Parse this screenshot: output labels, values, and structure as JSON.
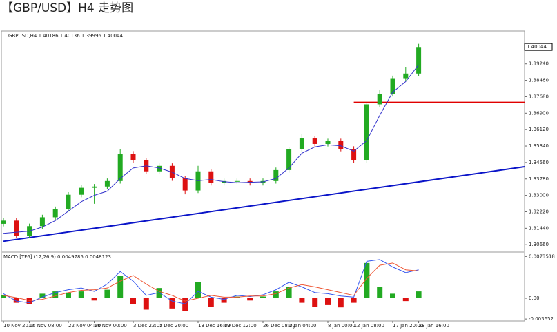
{
  "title": "【GBP/USD】H4 走势图",
  "chart_data": {
    "type": "candlestick",
    "header": "GBPUSD,H4  1.40186 1.40136 1.39996 1.40044",
    "categories": [
      "10 Nov 2017",
      null,
      "16 Nov 08:00",
      null,
      null,
      "22 Nov 04:00",
      null,
      "28 Nov 00:00",
      null,
      null,
      "3 Dec 22:05",
      null,
      "7 Dec 20:00",
      null,
      null,
      "13 Dec 16:00",
      null,
      "19 Dec 12:00",
      null,
      null,
      "26 Dec 08:00",
      null,
      "2 Jan 04:00",
      null,
      null,
      "8 Jan 00:00",
      null,
      "12 Jan 08:00",
      null,
      null,
      "17 Jan 20:00",
      null,
      "23 Jan 16:00"
    ],
    "open": [
      1.3165,
      1.318,
      1.3108,
      1.3154,
      1.3196,
      1.3235,
      1.3303,
      1.3336,
      1.3342,
      1.3368,
      1.3498,
      1.3466,
      1.3414,
      1.344,
      1.3381,
      1.3323,
      1.3414,
      1.3359,
      1.3368,
      1.3368,
      1.3359,
      1.3368,
      1.342,
      1.3518,
      1.357,
      1.3544,
      1.3557,
      1.3521,
      1.3466,
      1.3732,
      1.3781,
      1.3856,
      1.3878
    ],
    "high": [
      1.3192,
      1.3192,
      1.3166,
      1.3208,
      1.3247,
      1.3315,
      1.3348,
      1.3354,
      1.338,
      1.352,
      1.351,
      1.3478,
      1.3452,
      1.3452,
      1.3393,
      1.344,
      1.3426,
      1.338,
      1.338,
      1.338,
      1.338,
      1.3432,
      1.353,
      1.359,
      1.3582,
      1.3569,
      1.3569,
      1.3533,
      1.3744,
      1.38,
      1.3868,
      1.391,
      1.4019
    ],
    "low": [
      1.3153,
      1.3096,
      1.3096,
      1.3142,
      1.3184,
      1.3223,
      1.3291,
      1.326,
      1.333,
      1.3356,
      1.3454,
      1.3402,
      1.3402,
      1.3369,
      1.3305,
      1.3311,
      1.3347,
      1.3347,
      1.3356,
      1.3347,
      1.3347,
      1.3356,
      1.3408,
      1.3506,
      1.3532,
      1.3532,
      1.3509,
      1.3454,
      1.3454,
      1.372,
      1.3769,
      1.3844,
      1.3866
    ],
    "close": [
      1.318,
      1.3108,
      1.3154,
      1.3196,
      1.3235,
      1.3303,
      1.3336,
      1.3342,
      1.3368,
      1.3498,
      1.3466,
      1.3414,
      1.344,
      1.3381,
      1.3323,
      1.3414,
      1.3359,
      1.3368,
      1.3368,
      1.3359,
      1.3368,
      1.342,
      1.3518,
      1.357,
      1.3544,
      1.3557,
      1.3521,
      1.3466,
      1.3732,
      1.3781,
      1.3856,
      1.3878,
      1.4004
    ],
    "up_color": "#22aa22",
    "down_color": "#dd1111",
    "ma": {
      "color": "#3333cc",
      "values": [
        1.312,
        1.3125,
        1.313,
        1.315,
        1.318,
        1.3225,
        1.327,
        1.33,
        1.332,
        1.338,
        1.343,
        1.344,
        1.343,
        1.341,
        1.338,
        1.337,
        1.3375,
        1.3365,
        1.336,
        1.3362,
        1.3364,
        1.338,
        1.343,
        1.35,
        1.353,
        1.354,
        1.3535,
        1.351,
        1.356,
        1.368,
        1.379,
        1.384,
        1.392
      ]
    },
    "trend_line": {
      "color": "#0a14c8",
      "values": [
        1.3082,
        1.3436
      ]
    },
    "level_line": {
      "color": "#e00000",
      "value": 1.3742
    },
    "last_price": 1.40044,
    "ylim": [
      1.3034,
      1.408
    ],
    "yticks": [
      {
        "value": 1.3066,
        "label": "1.30660"
      },
      {
        "value": 1.3144,
        "label": "1.31440"
      },
      {
        "value": 1.3222,
        "label": "1.32220"
      },
      {
        "value": 1.33,
        "label": "1.33000"
      },
      {
        "value": 1.3378,
        "label": "1.33780"
      },
      {
        "value": 1.3456,
        "label": "1.34560"
      },
      {
        "value": 1.3534,
        "label": "1.35340"
      },
      {
        "value": 1.3612,
        "label": "1.36120"
      },
      {
        "value": 1.369,
        "label": "1.36900"
      },
      {
        "value": 1.3768,
        "label": "1.37680"
      },
      {
        "value": 1.3846,
        "label": "1.38460"
      },
      {
        "value": 1.3924,
        "label": "1.39240"
      }
    ],
    "macd": {
      "header": "MACD [TF6] (12,26,9) 0.0049785 0.0048123",
      "hist": [
        0.0005,
        -0.0008,
        -0.001,
        0.0008,
        0.0012,
        0.001,
        0.0012,
        -0.0004,
        0.0015,
        0.004,
        -0.001,
        -0.002,
        0.0018,
        -0.0018,
        -0.0022,
        0.0028,
        -0.0015,
        -0.0008,
        0.0003,
        -0.0004,
        0.0003,
        0.0012,
        0.002,
        -0.0008,
        -0.0015,
        -0.0012,
        -0.0016,
        -0.0008,
        0.0062,
        0.002,
        0.0008,
        -0.0005,
        0.0012
      ],
      "line": {
        "color": "#3355ee",
        "values": [
          0.0008,
          -0.0005,
          -0.0008,
          0.0002,
          0.001,
          0.0015,
          0.0018,
          0.0012,
          0.0025,
          0.0047,
          0.003,
          0.0005,
          0.001,
          -0.0005,
          -0.001,
          0.0012,
          0.0002,
          -0.0002,
          0.0005,
          0.0003,
          0.0006,
          0.0015,
          0.0028,
          0.002,
          0.001,
          0.0008,
          0.0004,
          0.0002,
          0.0065,
          0.0068,
          0.0055,
          0.0045,
          0.005
        ]
      },
      "signal": {
        "color": "#ee5533",
        "values": [
          0.0005,
          0.0001,
          -0.0004,
          -0.0002,
          0.0004,
          0.001,
          0.0014,
          0.0015,
          0.0018,
          0.003,
          0.004,
          0.0025,
          0.0012,
          0.0005,
          -0.0005,
          0.0,
          0.0005,
          0.0002,
          0.0002,
          0.0004,
          0.0004,
          0.0008,
          0.0018,
          0.0024,
          0.002,
          0.0015,
          0.001,
          0.0005,
          0.0035,
          0.0058,
          0.0062,
          0.005,
          0.0048
        ]
      },
      "ylim": [
        -0.004,
        0.008
      ],
      "yticks": [
        0.0073518,
        {
          "value": 0,
          "label": "0.00"
        },
        -0.003652
      ]
    }
  }
}
